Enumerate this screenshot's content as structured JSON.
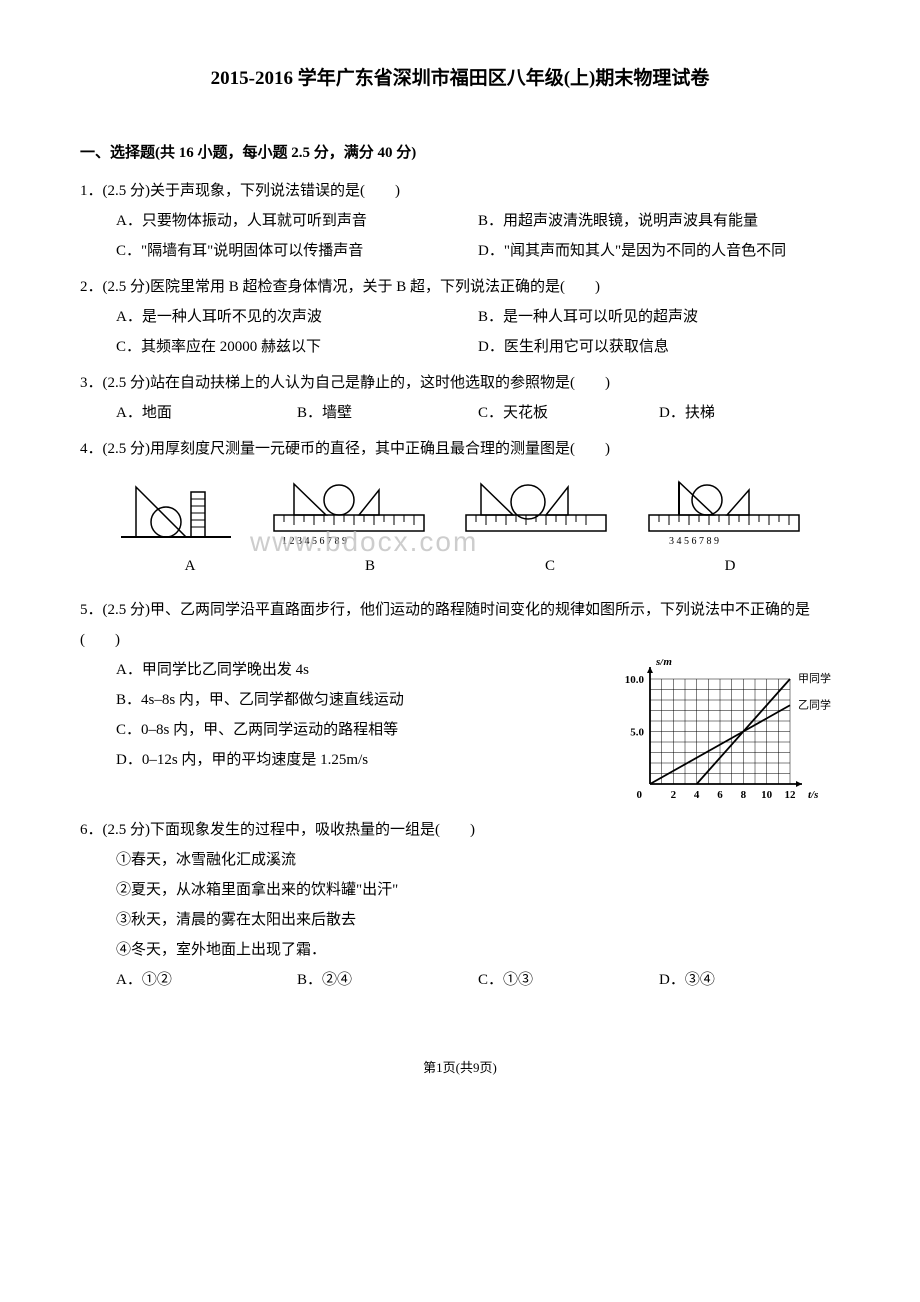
{
  "title": "2015-2016 学年广东省深圳市福田区八年级(上)期末物理试卷",
  "section": "一、选择题(共 16 小题，每小题 2.5 分，满分 40 分)",
  "q1": {
    "text": "1．(2.5 分)关于声现象，下列说法错误的是(　　)",
    "A": "A．只要物体振动，人耳就可听到声音",
    "B": "B．用超声波清洗眼镜，说明声波具有能量",
    "C": "C．\"隔墙有耳\"说明固体可以传播声音",
    "D": "D．\"闻其声而知其人\"是因为不同的人音色不同"
  },
  "q2": {
    "text": "2．(2.5 分)医院里常用 B 超检查身体情况，关于 B 超，下列说法正确的是(　　)",
    "A": "A．是一种人耳听不见的次声波",
    "B": "B．是一种人耳可以听见的超声波",
    "C": "C．其频率应在 20000 赫兹以下",
    "D": "D．医生利用它可以获取信息"
  },
  "q3": {
    "text": "3．(2.5 分)站在自动扶梯上的人认为自己是静止的，这时他选取的参照物是(　　)",
    "A": "A．地面",
    "B": "B．墙壁",
    "C": "C．天花板",
    "D": "D．扶梯"
  },
  "q4": {
    "text": "4．(2.5 分)用厚刻度尺测量一元硬币的直径，其中正确且最合理的测量图是(　　)",
    "labels": {
      "A": "A",
      "B": "B",
      "C": "C",
      "D": "D"
    }
  },
  "q5": {
    "text": "5．(2.5 分)甲、乙两同学沿平直路面步行，他们运动的路程随时间变化的规律如图所示，下列说法中不正确的是(　　)",
    "A": "A．甲同学比乙同学晚出发 4s",
    "B": "B．4s–8s 内，甲、乙同学都做匀速直线运动",
    "C": "C．0–8s 内，甲、乙两同学运动的路程相等",
    "D": "D．0–12s 内，甲的平均速度是 1.25m/s",
    "chart": {
      "type": "line",
      "background_color": "#ffffff",
      "axis_color": "#000000",
      "grid_on": true,
      "xlabel": "t/s",
      "ylabel": "s/m",
      "xlim": [
        0,
        12
      ],
      "ylim": [
        0,
        10
      ],
      "xtick_values": [
        2,
        4,
        6,
        8,
        10,
        12
      ],
      "ytick_values": [
        5.0,
        10.0
      ],
      "series": [
        {
          "name": "甲同学",
          "color": "#000000",
          "points": [
            [
              4,
              0
            ],
            [
              12,
              10
            ]
          ]
        },
        {
          "name": "乙同学",
          "color": "#000000",
          "points": [
            [
              0,
              0
            ],
            [
              8,
              5
            ],
            [
              12,
              7.5
            ]
          ]
        }
      ],
      "fontsize": 11
    }
  },
  "q6": {
    "text": "6．(2.5 分)下面现象发生的过程中，吸收热量的一组是(　　)",
    "items": {
      "1": "①春天，冰雪融化汇成溪流",
      "2": "②夏天，从冰箱里面拿出来的饮料罐\"出汗\"",
      "3": "③秋天，清晨的雾在太阳出来后散去",
      "4": "④冬天，室外地面上出现了霜．"
    },
    "A": "A．①②",
    "B": "B．②④",
    "C": "C．①③",
    "D": "D．③④"
  },
  "watermark": "www.bdocx.com",
  "footer": "第1页(共9页)",
  "diagrams": {
    "ruler_color": "#000000",
    "bg": "#ffffff"
  }
}
